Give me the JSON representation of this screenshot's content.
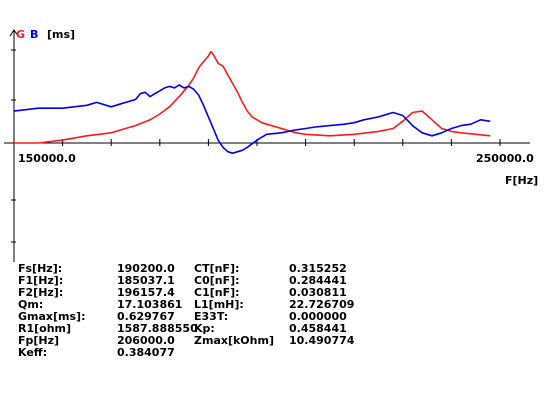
{
  "chart_data": {
    "type": "line",
    "legend": {
      "g_label": "G",
      "b_label": "B",
      "unit_label": "[ms]",
      "placement": "top-left"
    },
    "xlabel": "F[Hz]",
    "x_tick_labels": [
      "150000.0",
      "250000.0"
    ],
    "xlim": [
      150000,
      250000
    ],
    "grid": false,
    "colors": {
      "G": "#ff1a1a",
      "B": "#0000ee",
      "axis": "#000000"
    },
    "series": [
      {
        "name": "G",
        "x": [
          150000,
          155000,
          160000,
          165000,
          170000,
          172000,
          175000,
          178000,
          180000,
          182000,
          184000,
          185000,
          186000,
          187000,
          188000,
          189000,
          190000,
          190500,
          191000,
          192000,
          193000,
          194000,
          195000,
          196000,
          197000,
          198000,
          199000,
          200000,
          201000,
          202000,
          204000,
          206000,
          208000,
          210000,
          215000,
          220000,
          225000,
          228000,
          230000,
          232000,
          234000,
          236000,
          238000,
          240000,
          242000,
          245000,
          248000
        ],
        "y": [
          0.0,
          0.0,
          0.02,
          0.05,
          0.07,
          0.09,
          0.12,
          0.16,
          0.2,
          0.25,
          0.32,
          0.36,
          0.4,
          0.45,
          0.52,
          0.56,
          0.6,
          0.63,
          0.61,
          0.55,
          0.53,
          0.47,
          0.41,
          0.35,
          0.28,
          0.22,
          0.18,
          0.16,
          0.14,
          0.13,
          0.11,
          0.09,
          0.07,
          0.06,
          0.05,
          0.06,
          0.08,
          0.1,
          0.15,
          0.21,
          0.22,
          0.16,
          0.1,
          0.08,
          0.07,
          0.06,
          0.05
        ]
      },
      {
        "name": "B",
        "x": [
          150000,
          155000,
          160000,
          165000,
          167000,
          170000,
          172000,
          175000,
          176000,
          177000,
          178000,
          179000,
          180000,
          181000,
          182000,
          183000,
          184000,
          185000,
          186000,
          187000,
          188000,
          189000,
          190000,
          191000,
          192000,
          193000,
          194000,
          195000,
          196000,
          197000,
          198000,
          200000,
          202000,
          205000,
          208000,
          210000,
          212000,
          215000,
          218000,
          220000,
          222000,
          225000,
          228000,
          230000,
          232000,
          234000,
          236000,
          238000,
          240000,
          242000,
          244000,
          246000,
          248000
        ],
        "y": [
          0.22,
          0.24,
          0.24,
          0.26,
          0.28,
          0.25,
          0.27,
          0.3,
          0.34,
          0.35,
          0.32,
          0.34,
          0.36,
          0.38,
          0.39,
          0.38,
          0.4,
          0.38,
          0.39,
          0.37,
          0.33,
          0.26,
          0.18,
          0.1,
          0.02,
          -0.03,
          -0.06,
          -0.07,
          -0.06,
          -0.05,
          -0.03,
          0.02,
          0.06,
          0.07,
          0.09,
          0.1,
          0.11,
          0.12,
          0.13,
          0.14,
          0.16,
          0.18,
          0.21,
          0.19,
          0.12,
          0.07,
          0.05,
          0.07,
          0.1,
          0.12,
          0.13,
          0.16,
          0.15
        ]
      }
    ]
  },
  "params": {
    "left": [
      {
        "label": "Fs[Hz]:",
        "value": "190200.0"
      },
      {
        "label": "F1[Hz]:",
        "value": "185037.1"
      },
      {
        "label": "F2[Hz]:",
        "value": "196157.4"
      },
      {
        "label": "Qm:",
        "value": "17.103861"
      },
      {
        "label": "Gmax[ms]:",
        "value": "0.629767"
      },
      {
        "label": "R1[ohm]",
        "value": "1587.888550"
      },
      {
        "label": "Fp[Hz]",
        "value": "206000.0"
      },
      {
        "label": "Keff:",
        "value": "0.384077"
      }
    ],
    "right": [
      {
        "label": "CT[nF]:",
        "value": "0.315252"
      },
      {
        "label": "C0[nF]:",
        "value": "0.284441"
      },
      {
        "label": "C1[nF]:",
        "value": "0.030811"
      },
      {
        "label": "L1[mH]:",
        "value": "22.726709"
      },
      {
        "label": "E33T:",
        "value": "0.000000"
      },
      {
        "label": "Kp:",
        "value": "0.458441"
      },
      {
        "label": "Zmax[kOhm]",
        "value": "10.490774"
      }
    ]
  }
}
